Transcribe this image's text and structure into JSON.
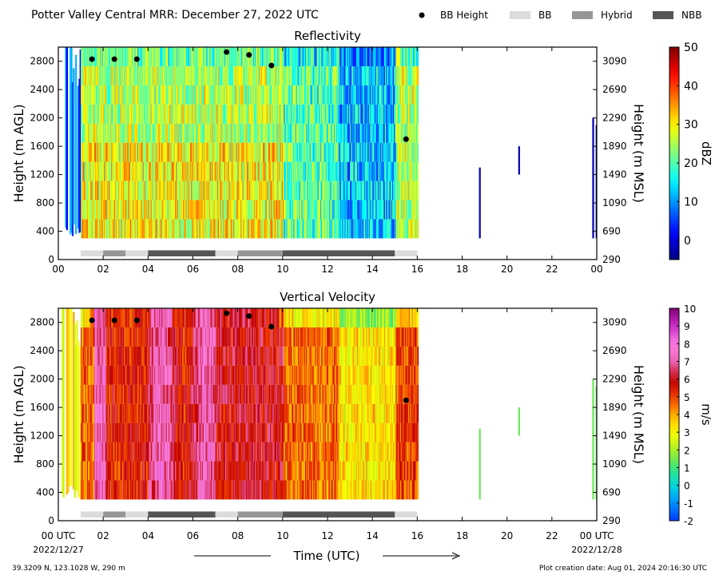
{
  "header": {
    "title": "Potter Valley Central MRR:  December 27, 2022 UTC"
  },
  "legend": [
    {
      "label": "BB Height",
      "kind": "marker",
      "color": "#000000"
    },
    {
      "label": "BB",
      "kind": "swatch",
      "color": "#dcdcdc"
    },
    {
      "label": "Hybrid",
      "kind": "swatch",
      "color": "#969696"
    },
    {
      "label": "NBB",
      "kind": "swatch",
      "color": "#555555"
    }
  ],
  "footer": {
    "location": "39.3209 N, 123.1028 W, 290 m",
    "creation": "Plot creation date: Aug 01, 2024 20:16:30 UTC",
    "xlabel": "Time (UTC)",
    "start_date": "2022/12/27",
    "end_date": "2022/12/28"
  },
  "chart_data": [
    {
      "type": "heatmap",
      "title": "Reflectivity",
      "xlabel": "Time (UTC)",
      "ylabel": "Height (m AGL)",
      "ylabel_right": "Height (m MSL)",
      "xlim": [
        0,
        24
      ],
      "ylim": [
        0,
        3000
      ],
      "xticks": [
        "00",
        "02",
        "04",
        "06",
        "08",
        "10",
        "12",
        "14",
        "16",
        "18",
        "20",
        "22",
        "00"
      ],
      "yticks": [
        0,
        400,
        800,
        1200,
        1600,
        2000,
        2400,
        2800
      ],
      "yticks_right": [
        "290",
        "690",
        "1090",
        "1490",
        "1890",
        "2290",
        "2690",
        "3090"
      ],
      "colorbar": {
        "label": "dBZ",
        "min": -5,
        "max": 50,
        "ticks": [
          "0",
          "10",
          "20",
          "30",
          "40",
          "50"
        ],
        "tick_values": [
          0,
          10,
          20,
          30,
          40,
          50
        ],
        "colormap": "jet"
      },
      "bb_height_points": [
        {
          "x": 1.5,
          "y": 2830
        },
        {
          "x": 2.5,
          "y": 2830
        },
        {
          "x": 3.5,
          "y": 2830
        },
        {
          "x": 7.5,
          "y": 2930
        },
        {
          "x": 8.5,
          "y": 2890
        },
        {
          "x": 9.5,
          "y": 2740
        },
        {
          "x": 15.5,
          "y": 1700
        }
      ],
      "bb_classification": [
        {
          "start": 1.0,
          "end": 2.0,
          "class": "BB"
        },
        {
          "start": 2.0,
          "end": 3.0,
          "class": "Hybrid"
        },
        {
          "start": 3.0,
          "end": 4.0,
          "class": "BB"
        },
        {
          "start": 4.0,
          "end": 7.0,
          "class": "NBB"
        },
        {
          "start": 7.0,
          "end": 8.0,
          "class": "BB"
        },
        {
          "start": 8.0,
          "end": 10.0,
          "class": "Hybrid"
        },
        {
          "start": 10.0,
          "end": 15.0,
          "class": "NBB"
        },
        {
          "start": 15.0,
          "end": 16.0,
          "class": "BB"
        }
      ]
    },
    {
      "type": "heatmap",
      "title": "Vertical Velocity",
      "xlabel": "Time (UTC)",
      "ylabel": "Height (m AGL)",
      "ylabel_right": "Height (m MSL)",
      "xlim": [
        0,
        24
      ],
      "ylim": [
        0,
        3000
      ],
      "xticks": [
        "00 UTC",
        "02",
        "04",
        "06",
        "08",
        "10",
        "12",
        "14",
        "16",
        "18",
        "20",
        "22",
        "00 UTC"
      ],
      "yticks": [
        0,
        400,
        800,
        1200,
        1600,
        2000,
        2400,
        2800
      ],
      "yticks_right": [
        "290",
        "690",
        "1090",
        "1490",
        "1890",
        "2290",
        "2690",
        "3090"
      ],
      "colorbar": {
        "label": "m/s",
        "min": -2,
        "max": 10,
        "ticks": [
          "-2",
          "-1",
          "0",
          "1",
          "2",
          "3",
          "4",
          "5",
          "6",
          "7",
          "8",
          "9",
          "10"
        ],
        "tick_values": [
          -2,
          -1,
          0,
          1,
          2,
          3,
          4,
          5,
          6,
          7,
          8,
          9,
          10
        ],
        "colormap": "velocity"
      },
      "bb_height_points": [
        {
          "x": 1.5,
          "y": 2830
        },
        {
          "x": 2.5,
          "y": 2830
        },
        {
          "x": 3.5,
          "y": 2830
        },
        {
          "x": 7.5,
          "y": 2930
        },
        {
          "x": 8.5,
          "y": 2890
        },
        {
          "x": 9.5,
          "y": 2740
        },
        {
          "x": 15.5,
          "y": 1700
        }
      ],
      "bb_classification": [
        {
          "start": 1.0,
          "end": 2.0,
          "class": "BB"
        },
        {
          "start": 2.0,
          "end": 3.0,
          "class": "Hybrid"
        },
        {
          "start": 3.0,
          "end": 4.0,
          "class": "BB"
        },
        {
          "start": 4.0,
          "end": 7.0,
          "class": "NBB"
        },
        {
          "start": 7.0,
          "end": 8.0,
          "class": "BB"
        },
        {
          "start": 8.0,
          "end": 10.0,
          "class": "Hybrid"
        },
        {
          "start": 10.0,
          "end": 15.0,
          "class": "NBB"
        },
        {
          "start": 15.0,
          "end": 16.0,
          "class": "BB"
        }
      ]
    }
  ]
}
